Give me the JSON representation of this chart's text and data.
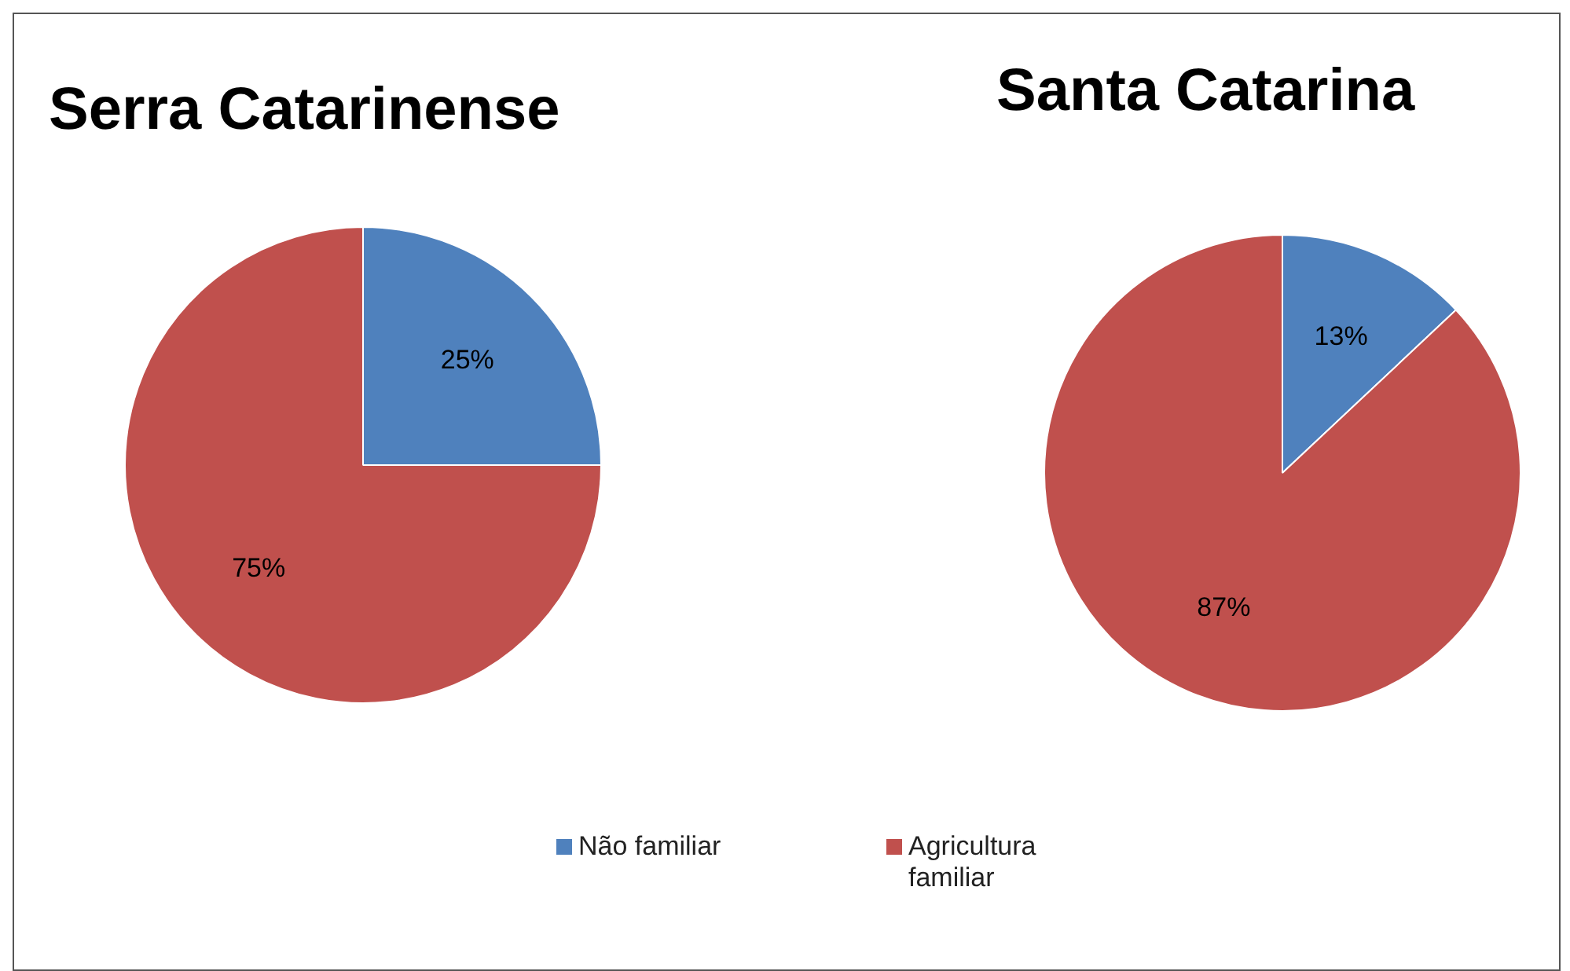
{
  "chart_data": [
    {
      "type": "pie",
      "title": "Serra Catarinense",
      "categories": [
        "Não familiar",
        "Agricultura familiar"
      ],
      "values": [
        25,
        75
      ],
      "colors": [
        "#4f81bd",
        "#c0504d"
      ],
      "value_labels": [
        "25%",
        "75%"
      ],
      "legend": "bottom"
    },
    {
      "type": "pie",
      "title": "Santa Catarina",
      "categories": [
        null,
        null
      ],
      "values": [
        13,
        87
      ],
      "colors": [
        "#4f81bd",
        "#c0504d"
      ],
      "value_labels": [
        "13%",
        "87%"
      ]
    }
  ]
}
